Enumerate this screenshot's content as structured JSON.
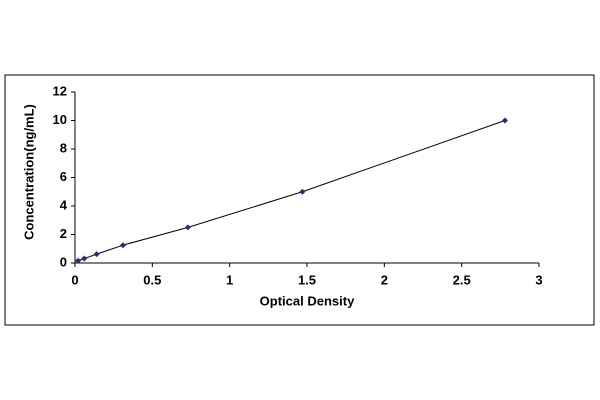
{
  "chart_data": {
    "type": "line",
    "x_label": "Optical Density",
    "y_label": "Concentration(ng/mL)",
    "x": [
      0.02,
      0.06,
      0.14,
      0.31,
      0.73,
      1.47,
      2.78
    ],
    "values": [
      0.156,
      0.312,
      0.625,
      1.25,
      2.5,
      5,
      10
    ],
    "color": "#000000",
    "marker_color": "#1f2f7a",
    "xlim": [
      0,
      3
    ],
    "ylim": [
      0,
      12
    ],
    "xticks": [
      0,
      0.5,
      1,
      1.5,
      2,
      2.5,
      3
    ],
    "yticks": [
      0,
      2,
      4,
      6,
      8,
      10,
      12
    ],
    "grid": false
  }
}
